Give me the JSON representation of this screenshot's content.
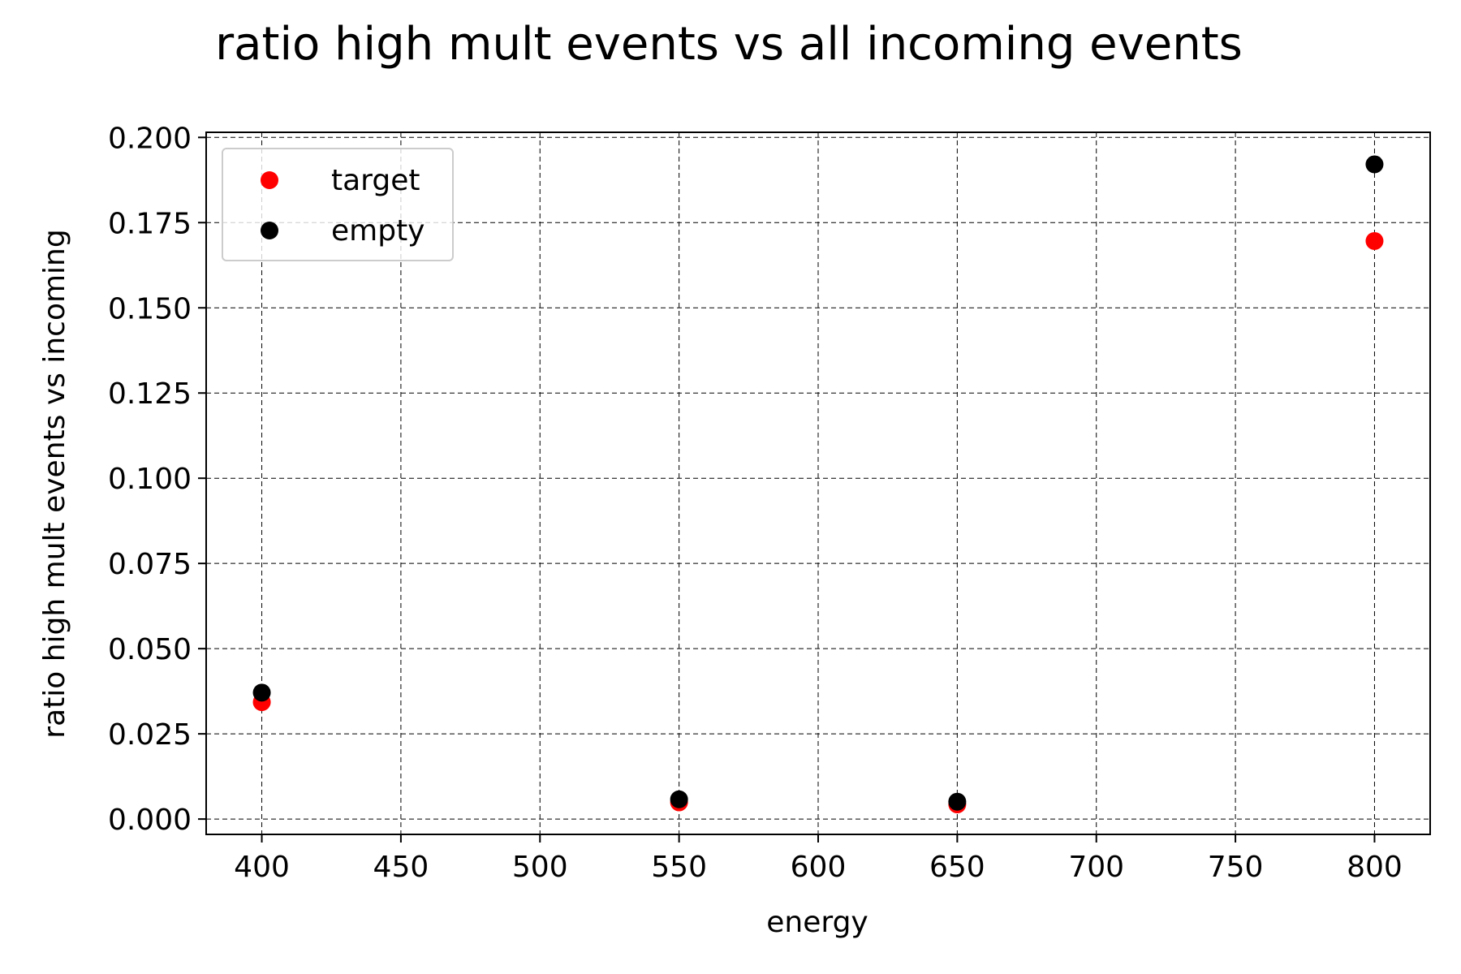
{
  "chart_data": {
    "type": "scatter",
    "title": "ratio high mult events vs all incoming events",
    "xlabel": "energy",
    "ylabel": "ratio high mult events vs incoming",
    "xlim": [
      380,
      820
    ],
    "ylim": [
      -0.0045,
      0.2015
    ],
    "xticks": [
      400,
      450,
      500,
      550,
      600,
      650,
      700,
      750,
      800
    ],
    "xtick_labels": [
      "400",
      "450",
      "500",
      "550",
      "600",
      "650",
      "700",
      "750",
      "800"
    ],
    "yticks": [
      0.0,
      0.025,
      0.05,
      0.075,
      0.1,
      0.125,
      0.15,
      0.175,
      0.2
    ],
    "ytick_labels": [
      "0.000",
      "0.025",
      "0.050",
      "0.075",
      "0.100",
      "0.125",
      "0.150",
      "0.175",
      "0.200"
    ],
    "grid": true,
    "legend_position": "upper-left",
    "series": [
      {
        "name": "target",
        "color": "#ff0000",
        "x": [
          400,
          550,
          650,
          800
        ],
        "y": [
          0.0343,
          0.0049,
          0.0043,
          0.1696
        ]
      },
      {
        "name": "empty",
        "color": "#000000",
        "x": [
          400,
          550,
          650,
          800
        ],
        "y": [
          0.0371,
          0.0058,
          0.0051,
          0.1921
        ]
      }
    ]
  }
}
